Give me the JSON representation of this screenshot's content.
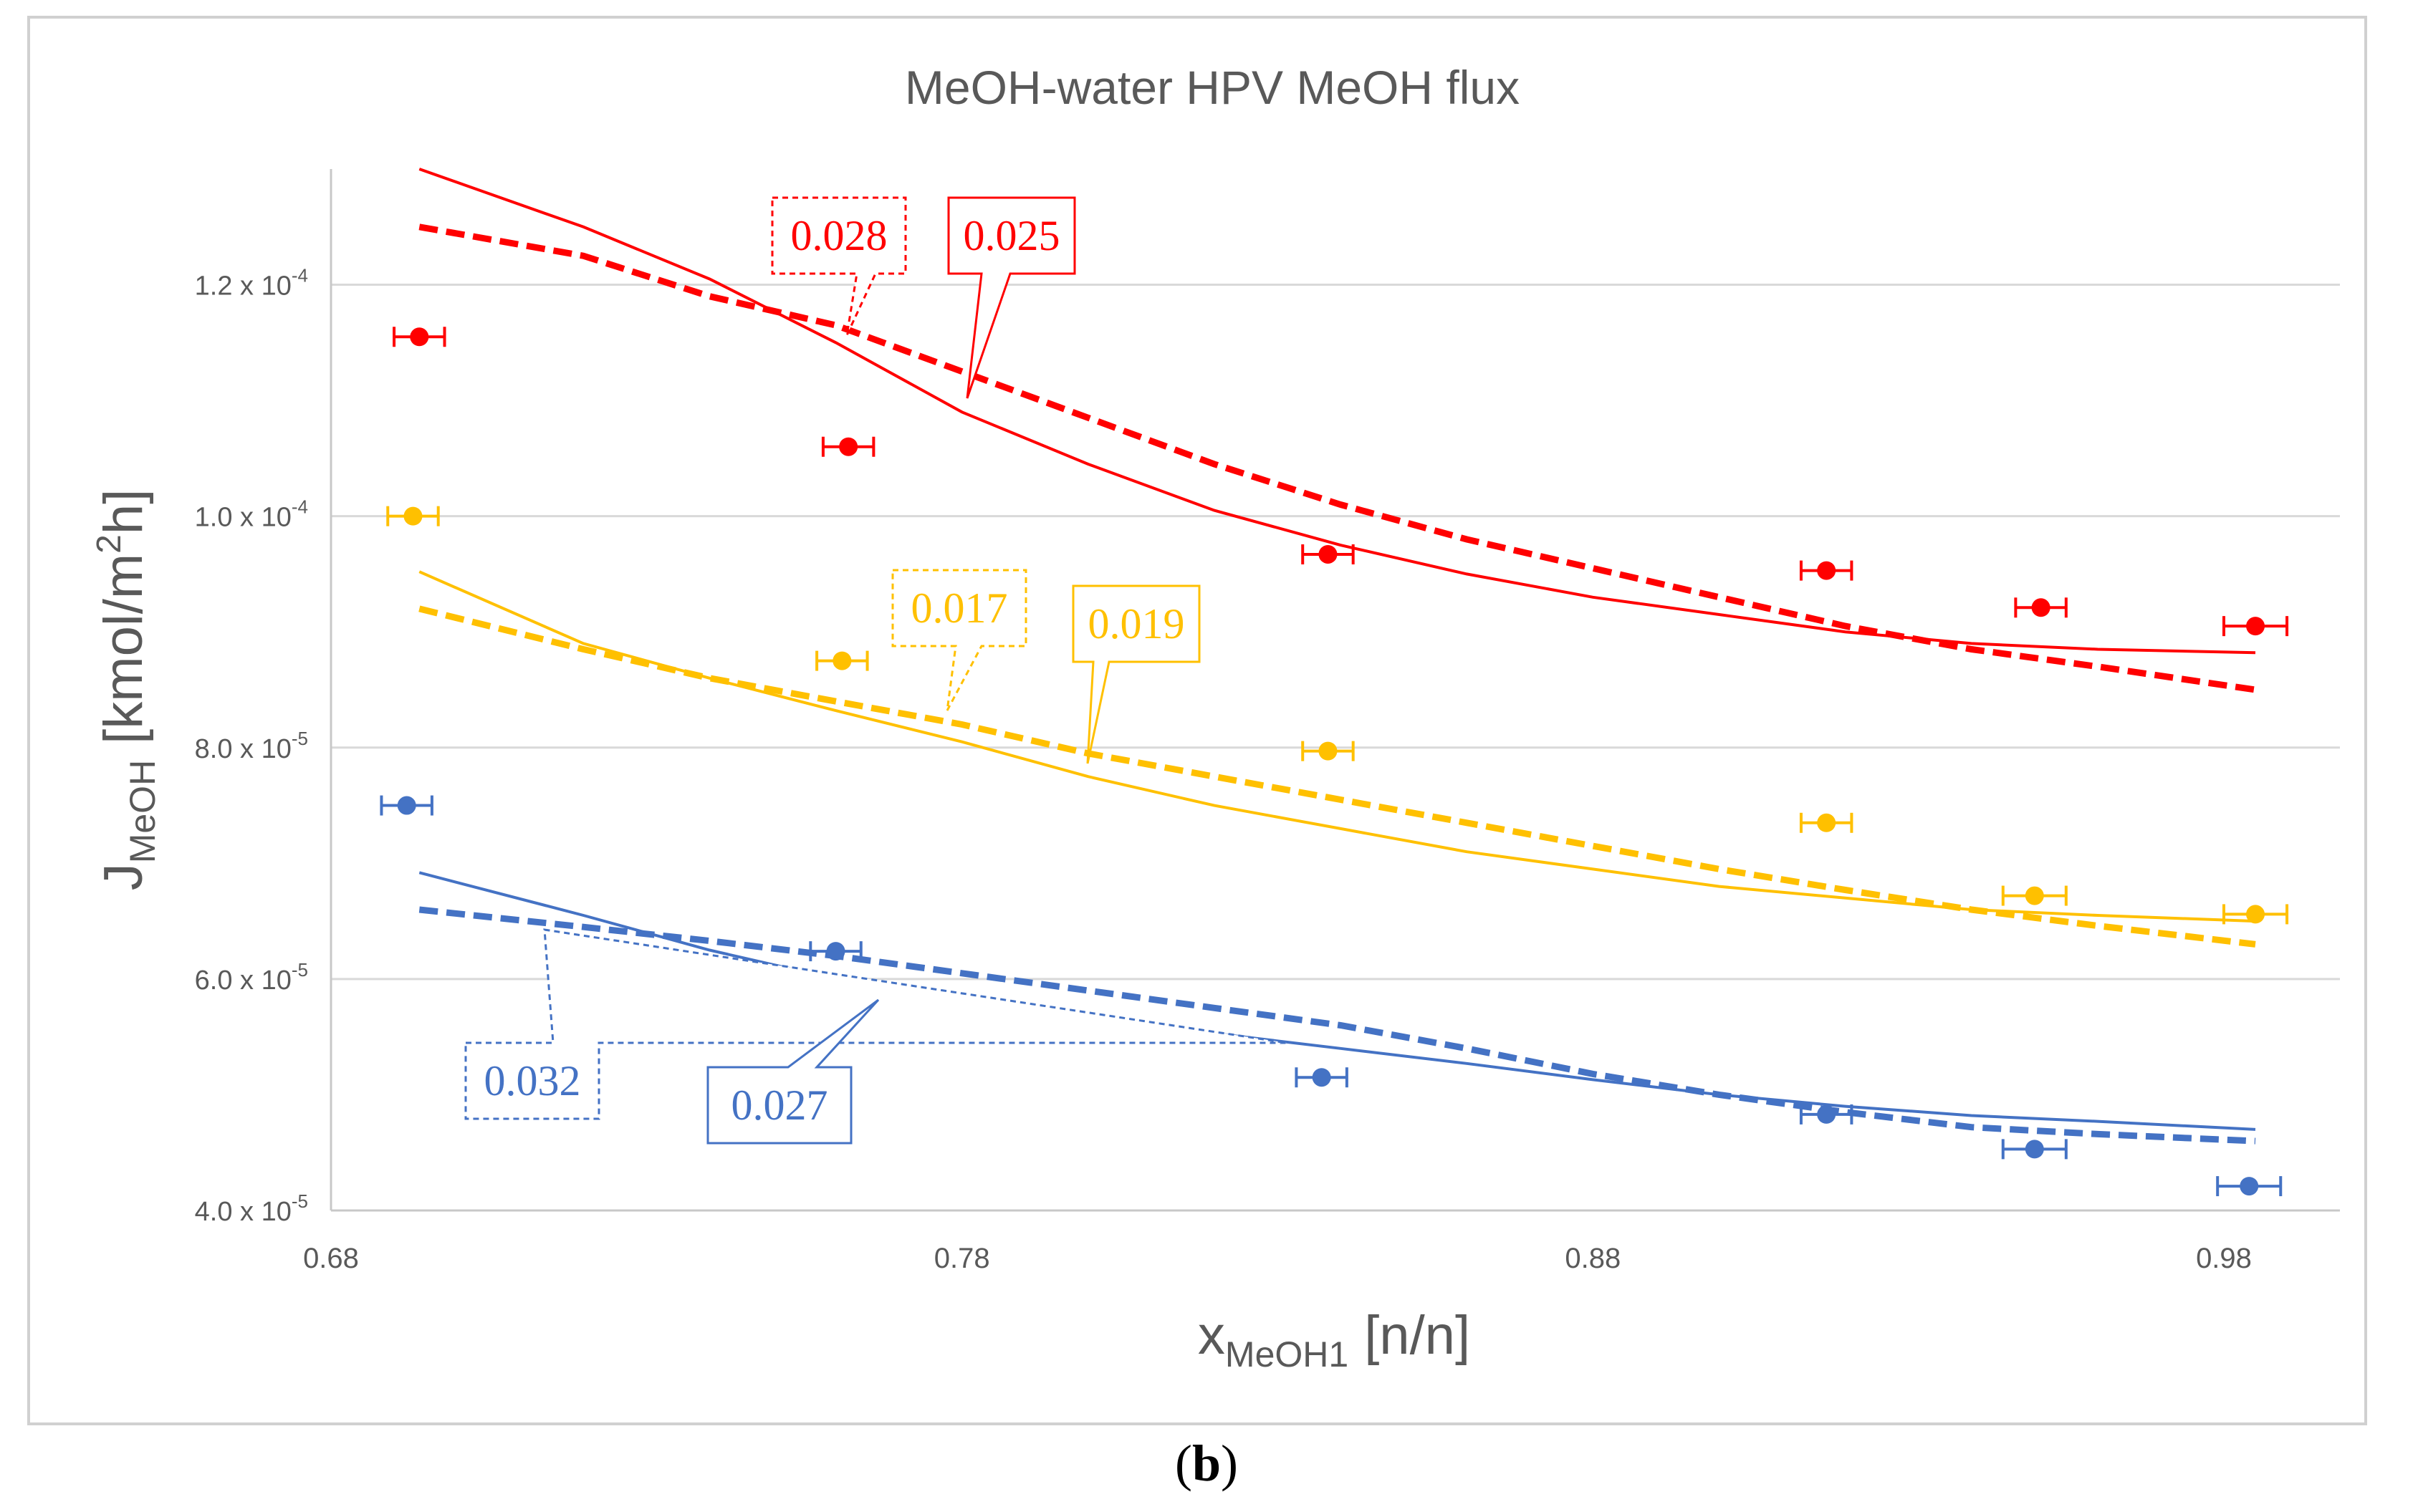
{
  "caption": {
    "open": "(",
    "letter": "b",
    "close": ")"
  },
  "chart_data": {
    "type": "scatter",
    "title": "MeOH-water HPV MeOH flux",
    "xlabel": {
      "main": "x",
      "sub": "MeOH1",
      "unit": "[n/n]"
    },
    "ylabel": {
      "main": "J",
      "sub": "MeOH",
      "unit_pre": "[kmol/m",
      "unit_sup": "2",
      "unit_post": "h]"
    },
    "xlim": [
      0.68,
      1.0
    ],
    "ylim": [
      4e-05,
      0.00013
    ],
    "grid": "horizontal",
    "legend": "none",
    "x_ticks": [
      {
        "value": 0.68,
        "label": "0.68"
      },
      {
        "value": 0.78,
        "label": "0.78"
      },
      {
        "value": 0.88,
        "label": "0.88"
      },
      {
        "value": 0.98,
        "label": "0.98"
      }
    ],
    "y_ticks": [
      {
        "value": 4e-05,
        "mant": "4.0 x 10",
        "exp": "-5"
      },
      {
        "value": 6e-05,
        "mant": "6.0 x 10",
        "exp": "-5"
      },
      {
        "value": 8e-05,
        "mant": "8.0 x 10",
        "exp": "-5"
      },
      {
        "value": 0.0001,
        "mant": "1.0 x 10",
        "exp": "-4"
      },
      {
        "value": 0.00012,
        "mant": "1.2 x 10",
        "exp": "-4"
      }
    ],
    "series": [
      {
        "color": "#ff0000",
        "points": [
          {
            "x": 0.694,
            "y": 0.0001155,
            "xerr": 0.004
          },
          {
            "x": 0.762,
            "y": 0.000106,
            "xerr": 0.004
          },
          {
            "x": 0.838,
            "y": 9.67e-05,
            "xerr": 0.004
          },
          {
            "x": 0.917,
            "y": 9.53e-05,
            "xerr": 0.004
          },
          {
            "x": 0.951,
            "y": 9.21e-05,
            "xerr": 0.004
          },
          {
            "x": 0.985,
            "y": 9.05e-05,
            "xerr": 0.005
          }
        ],
        "solid_fit": {
          "x": [
            0.694,
            0.72,
            0.74,
            0.76,
            0.78,
            0.8,
            0.82,
            0.84,
            0.86,
            0.88,
            0.9,
            0.92,
            0.94,
            0.96,
            0.985
          ],
          "y": [
            0.00013,
            0.000125,
            0.0001205,
            0.000115,
            0.000109,
            0.0001045,
            0.0001005,
            9.75e-05,
            9.5e-05,
            9.3e-05,
            9.15e-05,
            9e-05,
            8.9e-05,
            8.85e-05,
            8.82e-05
          ]
        },
        "dashed_fit": {
          "x": [
            0.694,
            0.72,
            0.74,
            0.76,
            0.78,
            0.8,
            0.82,
            0.84,
            0.86,
            0.88,
            0.9,
            0.92,
            0.94,
            0.96,
            0.985
          ],
          "y": [
            0.000125,
            0.0001225,
            0.000119,
            0.0001165,
            0.0001125,
            0.0001085,
            0.0001045,
            0.000101,
            9.8e-05,
            9.55e-05,
            9.3e-05,
            9.05e-05,
            8.85e-05,
            8.7e-05,
            8.5e-05
          ]
        },
        "labels": {
          "solid": "0.025",
          "dashed": "0.028"
        }
      },
      {
        "color": "#ffc000",
        "points": [
          {
            "x": 0.693,
            "y": 0.0001,
            "xerr": 0.004
          },
          {
            "x": 0.761,
            "y": 8.75e-05,
            "xerr": 0.004
          },
          {
            "x": 0.838,
            "y": 7.97e-05,
            "xerr": 0.004
          },
          {
            "x": 0.917,
            "y": 7.35e-05,
            "xerr": 0.004
          },
          {
            "x": 0.95,
            "y": 6.72e-05,
            "xerr": 0.005
          },
          {
            "x": 0.985,
            "y": 6.56e-05,
            "xerr": 0.005
          }
        ],
        "solid_fit": {
          "x": [
            0.694,
            0.72,
            0.74,
            0.76,
            0.78,
            0.8,
            0.82,
            0.84,
            0.86,
            0.88,
            0.9,
            0.92,
            0.94,
            0.96,
            0.985
          ],
          "y": [
            9.52e-05,
            8.9e-05,
            8.6e-05,
            8.32e-05,
            8.05e-05,
            7.75e-05,
            7.5e-05,
            7.3e-05,
            7.1e-05,
            6.95e-05,
            6.8e-05,
            6.7e-05,
            6.6e-05,
            6.55e-05,
            6.5e-05
          ]
        },
        "dashed_fit": {
          "x": [
            0.694,
            0.72,
            0.74,
            0.76,
            0.78,
            0.8,
            0.82,
            0.84,
            0.86,
            0.88,
            0.9,
            0.92,
            0.94,
            0.96,
            0.985
          ],
          "y": [
            9.2e-05,
            8.85e-05,
            8.6e-05,
            8.4e-05,
            8.2e-05,
            7.95e-05,
            7.75e-05,
            7.55e-05,
            7.35e-05,
            7.15e-05,
            6.95e-05,
            6.77e-05,
            6.6e-05,
            6.46e-05,
            6.3e-05
          ]
        },
        "labels": {
          "solid": "0.019",
          "dashed": "0.017"
        }
      },
      {
        "color": "#4472c4",
        "points": [
          {
            "x": 0.692,
            "y": 7.5e-05,
            "xerr": 0.004
          },
          {
            "x": 0.76,
            "y": 6.24e-05,
            "xerr": 0.004
          },
          {
            "x": 0.837,
            "y": 5.15e-05,
            "xerr": 0.004
          },
          {
            "x": 0.917,
            "y": 4.83e-05,
            "xerr": 0.004
          },
          {
            "x": 0.95,
            "y": 4.53e-05,
            "xerr": 0.005
          },
          {
            "x": 0.984,
            "y": 4.21e-05,
            "xerr": 0.005
          }
        ],
        "solid_fit": {
          "x": [
            0.694,
            0.72,
            0.74,
            0.76,
            0.78,
            0.8,
            0.82,
            0.84,
            0.86,
            0.88,
            0.9,
            0.92,
            0.94,
            0.96,
            0.985
          ],
          "y": [
            6.92e-05,
            6.55e-05,
            6.25e-05,
            6e-05,
            5.82e-05,
            5.67e-05,
            5.53e-05,
            5.4e-05,
            5.27e-05,
            5.13e-05,
            5e-05,
            4.9e-05,
            4.82e-05,
            4.77e-05,
            4.7e-05
          ]
        },
        "dashed_fit": {
          "x": [
            0.694,
            0.72,
            0.74,
            0.76,
            0.78,
            0.8,
            0.82,
            0.84,
            0.86,
            0.88,
            0.9,
            0.92,
            0.94,
            0.96,
            0.985
          ],
          "y": [
            6.6e-05,
            6.45e-05,
            6.33e-05,
            6.2e-05,
            6.05e-05,
            5.9e-05,
            5.75e-05,
            5.6e-05,
            5.4e-05,
            5.18e-05,
            5e-05,
            4.85e-05,
            4.72e-05,
            4.66e-05,
            4.6e-05
          ]
        },
        "labels": {
          "solid": "0.027",
          "dashed": "0.032"
        }
      }
    ]
  }
}
